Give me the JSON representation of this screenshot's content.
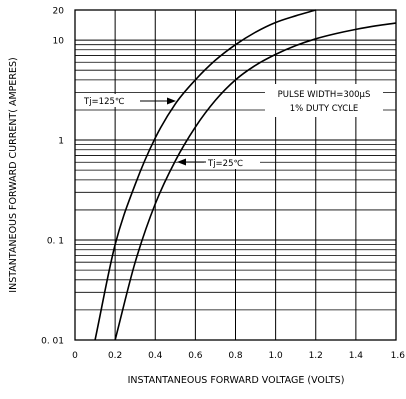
{
  "chart_data": {
    "type": "line",
    "title": "",
    "xlabel": "INSTANTANEOUS FORWARD VOLTAGE (VOLTS)",
    "ylabel": "INSTANTANEOUS FORWARD CURRENT( AMPERES)",
    "xlim": [
      0,
      1.6
    ],
    "ylim": [
      0.01,
      20
    ],
    "y_scale": "log",
    "grid": true,
    "x_ticks": [
      0,
      0.2,
      0.4,
      0.6,
      0.8,
      1.0,
      1.2,
      1.4,
      1.6
    ],
    "x_tick_labels": [
      "0",
      "0.2",
      "0.4",
      "0.6",
      "0.8",
      "1.0",
      "1.2",
      "1.4",
      "1.6"
    ],
    "y_tick_labels": [
      {
        "value": 20,
        "label": "20"
      },
      {
        "value": 10,
        "label": "10"
      },
      {
        "value": 1,
        "label": "1"
      },
      {
        "value": 0.1,
        "label": "0. 1"
      },
      {
        "value": 0.01,
        "label": "0. 01"
      }
    ],
    "series": [
      {
        "name": "Tj=125℃",
        "x": [
          0.1,
          0.2,
          0.3,
          0.4,
          0.5,
          0.6,
          0.7,
          0.8,
          0.9,
          1.0,
          1.1,
          1.2
        ],
        "y": [
          0.01,
          0.09,
          0.36,
          1.05,
          2.3,
          4.0,
          6.3,
          9.0,
          12.0,
          15.0,
          17.5,
          20.0
        ]
      },
      {
        "name": "Tj=25℃",
        "x": [
          0.2,
          0.3,
          0.4,
          0.5,
          0.6,
          0.7,
          0.8,
          0.9,
          1.0,
          1.1,
          1.2,
          1.3,
          1.4,
          1.5,
          1.6
        ],
        "y": [
          0.01,
          0.06,
          0.23,
          0.62,
          1.35,
          2.5,
          4.0,
          5.6,
          7.2,
          8.8,
          10.3,
          11.6,
          12.8,
          13.9,
          14.8
        ]
      }
    ],
    "annotations": [
      {
        "text": "PULSE WIDTH=300μS",
        "target": "none"
      },
      {
        "text": "1% DUTY CYCLE",
        "target": "none"
      }
    ]
  }
}
